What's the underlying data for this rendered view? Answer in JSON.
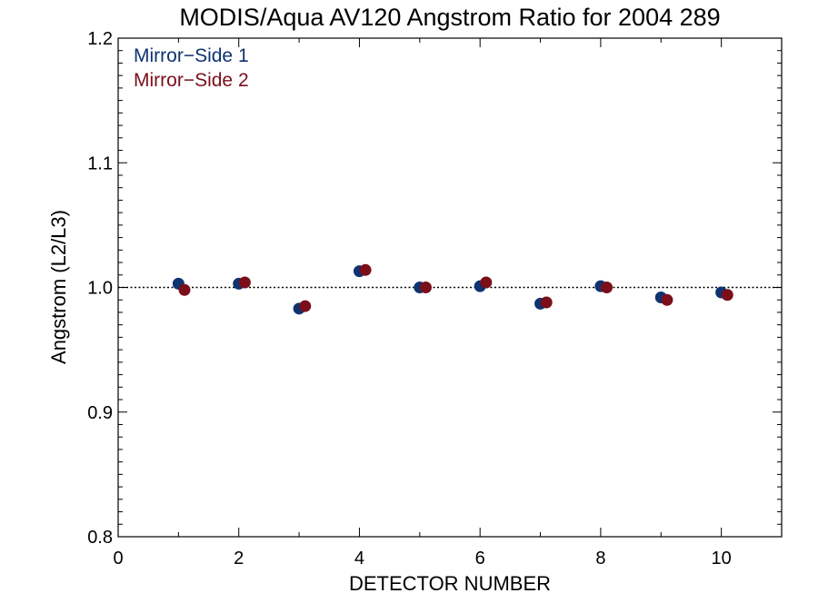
{
  "chart_data": {
    "type": "scatter",
    "title": "MODIS/Aqua AV120 Angstrom Ratio for 2004 289",
    "xlabel": "DETECTOR NUMBER",
    "ylabel": "Angstrom (L2/L3)",
    "xlim": [
      0,
      11
    ],
    "ylim": [
      0.8,
      1.2
    ],
    "x_ticks": [
      "0",
      "2",
      "4",
      "6",
      "8",
      "10"
    ],
    "y_ticks": [
      "0.8",
      "0.9",
      "1.0",
      "1.1",
      "1.2"
    ],
    "reference_line": 1.0,
    "legend_position": "top-left",
    "series": [
      {
        "name": "Mirror−Side 1",
        "color": "#0e3370",
        "x": [
          1,
          2,
          3,
          4,
          5,
          6,
          7,
          8,
          9,
          10
        ],
        "values": [
          1.003,
          1.003,
          0.983,
          1.013,
          1.0,
          1.001,
          0.987,
          1.001,
          0.992,
          0.996
        ]
      },
      {
        "name": "Mirror−Side 2",
        "color": "#7a0f1a",
        "x": [
          1.1,
          2.1,
          3.1,
          4.1,
          5.1,
          6.1,
          7.1,
          8.1,
          9.1,
          10.1
        ],
        "values": [
          0.998,
          1.004,
          0.985,
          1.014,
          1.0,
          1.004,
          0.988,
          1.0,
          0.99,
          0.994
        ]
      }
    ]
  }
}
